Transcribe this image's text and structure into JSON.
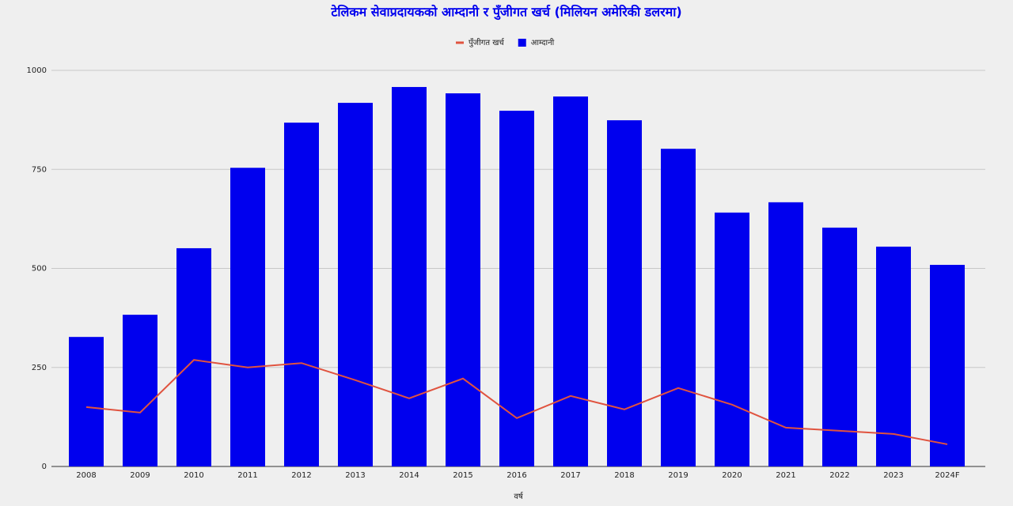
{
  "chart_data": {
    "type": "bar",
    "title": "टेलिकम सेवाप्रदायकको आम्दानी र पुँजीगत खर्च (मिलियन अमेरिकी डलरमा)",
    "x_label": "वर्ष",
    "categories": [
      "2008",
      "2009",
      "2010",
      "2011",
      "2012",
      "2013",
      "2014",
      "2015",
      "2016",
      "2017",
      "2018",
      "2019",
      "2020",
      "2021",
      "2022",
      "2023",
      "2024F"
    ],
    "series": [
      {
        "name": "पुँजीगत खर्च",
        "type": "line",
        "color": "#e0533f",
        "values": [
          150,
          136,
          269,
          250,
          261,
          218,
          172,
          222,
          122,
          178,
          144,
          198,
          156,
          98,
          90,
          82,
          56
        ]
      },
      {
        "name": "आम्दानी",
        "type": "bar",
        "color": "#0000ee",
        "values": [
          327,
          383,
          551,
          754,
          868,
          918,
          958,
          942,
          898,
          934,
          874,
          802,
          641,
          667,
          603,
          555,
          509
        ]
      }
    ],
    "ylim": [
      0,
      1000
    ],
    "yticks": [
      0,
      250,
      500,
      750,
      1000
    ],
    "grid": true,
    "legend": "top"
  }
}
